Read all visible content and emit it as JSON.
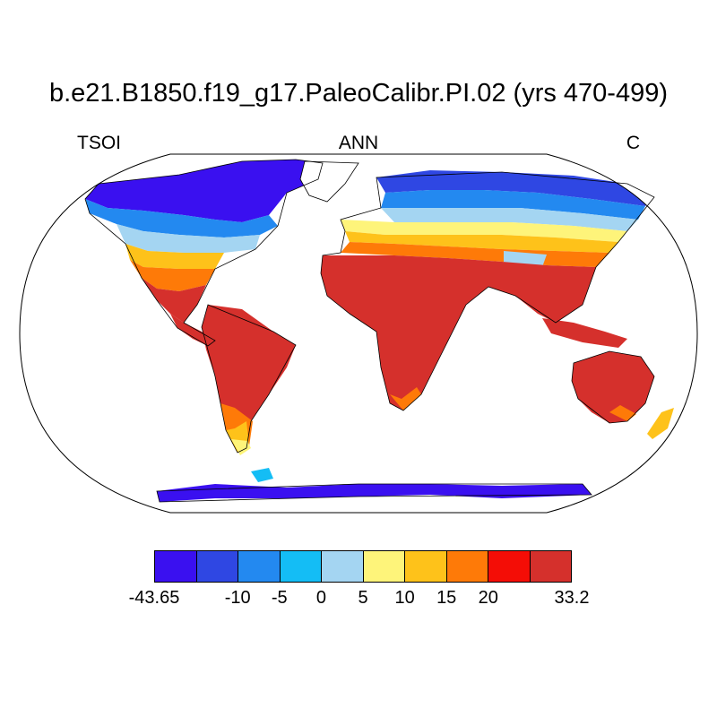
{
  "title": "b.e21.B1850.f19_g17.PaleoCalibr.PI.02 (yrs 470-499)",
  "left_label": "TSOI",
  "center_label": "ANN",
  "right_label": "C",
  "colorbar": {
    "colors": [
      "#3a10f0",
      "#2f47e3",
      "#2389f0",
      "#14bdf5",
      "#a4d5f2",
      "#fef47a",
      "#fec21a",
      "#fe7a08",
      "#f40d06",
      "#d5302c"
    ],
    "ticks": [
      "-43.65",
      "-10",
      "-5",
      "0",
      "5",
      "10",
      "15",
      "20",
      "33.2"
    ]
  }
}
